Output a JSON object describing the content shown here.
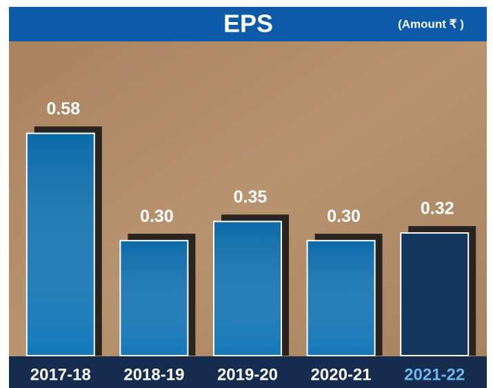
{
  "chart_data": {
    "type": "bar",
    "title": "EPS",
    "subtitle": "(Amount ₹ )",
    "categories": [
      "2017-18",
      "2018-19",
      "2019-20",
      "2020-21",
      "2021-22"
    ],
    "values": [
      0.58,
      0.3,
      0.35,
      0.3,
      0.32
    ],
    "value_labels": [
      "0.58",
      "0.30",
      "0.35",
      "0.30",
      "0.32"
    ],
    "colors": [
      "#0b6aa8",
      "#0b6aa8",
      "#0b6aa8",
      "#0b6aa8",
      "#13365e"
    ],
    "label_colors": [
      "#ffffff",
      "#ffffff",
      "#ffffff",
      "#ffffff",
      "#6db6ec"
    ],
    "ylim": [
      0,
      0.82
    ]
  }
}
